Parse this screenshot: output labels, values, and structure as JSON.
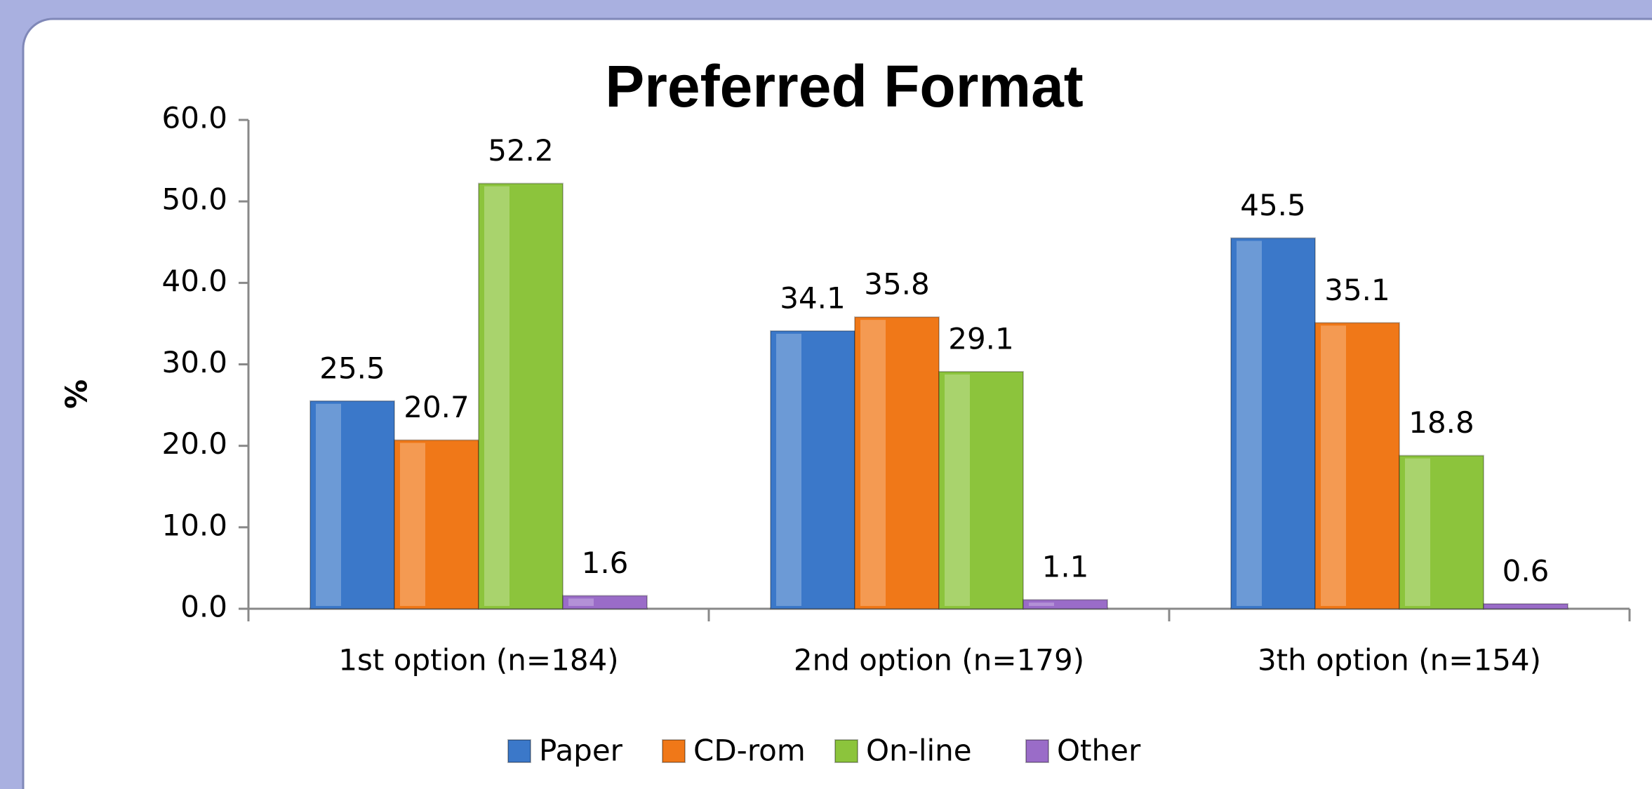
{
  "chart_data": {
    "type": "bar",
    "title": "Preferred Format",
    "y_label": "%",
    "categories": [
      "1st option (n=184)",
      "2nd option (n=179)",
      "3th option (n=154)"
    ],
    "series": [
      {
        "name": "Paper",
        "color": "#3b78c9",
        "values": [
          25.5,
          34.1,
          45.5
        ]
      },
      {
        "name": "CD-rom",
        "color": "#f07818",
        "values": [
          20.7,
          35.8,
          35.1
        ]
      },
      {
        "name": "On-line",
        "color": "#8cc43c",
        "values": [
          52.2,
          29.1,
          18.8
        ]
      },
      {
        "name": "Other",
        "color": "#9a6cc8",
        "values": [
          1.6,
          1.1,
          0.6
        ]
      }
    ],
    "ylim": [
      0,
      60
    ],
    "yticks": [
      {
        "value": 0,
        "label": "0.0"
      },
      {
        "value": 10,
        "label": "10.0"
      },
      {
        "value": 20,
        "label": "20.0"
      },
      {
        "value": 30,
        "label": "30.0"
      },
      {
        "value": 40,
        "label": "40.0"
      },
      {
        "value": 50,
        "label": "50.0"
      },
      {
        "value": 60,
        "label": "60.0"
      }
    ],
    "legend": "bottom",
    "grid": false
  }
}
